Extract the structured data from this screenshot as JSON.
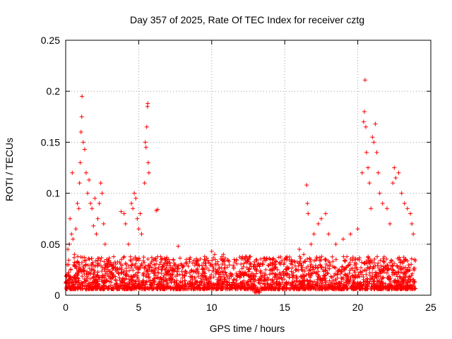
{
  "chart_data": {
    "type": "scatter",
    "title": "Day 357 of 2025, Rate Of TEC Index for receiver cztg",
    "xlabel": "GPS time / hours",
    "ylabel": "ROTI / TECUs",
    "xlim": [
      0,
      25
    ],
    "ylim": [
      0,
      0.25
    ],
    "xticks": [
      {
        "value": 0,
        "label": "0"
      },
      {
        "value": 5,
        "label": "5"
      },
      {
        "value": 10,
        "label": "10"
      },
      {
        "value": 15,
        "label": "15"
      },
      {
        "value": 20,
        "label": "20"
      },
      {
        "value": 25,
        "label": "25"
      }
    ],
    "yticks": [
      {
        "value": 0,
        "label": "0"
      },
      {
        "value": 0.05,
        "label": "0.05"
      },
      {
        "value": 0.1,
        "label": "0.1"
      },
      {
        "value": 0.15,
        "label": "0.15"
      },
      {
        "value": 0.2,
        "label": "0.2"
      },
      {
        "value": 0.25,
        "label": "0.25"
      }
    ],
    "grid": true,
    "marker": "+",
    "color": "#ff0000",
    "series": [
      {
        "name": "ROTI",
        "points": [
          [
            0.05,
            0.012
          ],
          [
            0.1,
            0.03
          ],
          [
            0.15,
            0.045
          ],
          [
            0.2,
            0.02
          ],
          [
            0.25,
            0.05
          ],
          [
            0.3,
            0.075
          ],
          [
            0.4,
            0.06
          ],
          [
            0.45,
            0.12
          ],
          [
            0.5,
            0.055
          ],
          [
            0.6,
            0.04
          ],
          [
            0.7,
            0.065
          ],
          [
            0.8,
            0.09
          ],
          [
            0.9,
            0.085
          ],
          [
            0.95,
            0.11
          ],
          [
            1.0,
            0.13
          ],
          [
            1.05,
            0.16
          ],
          [
            1.1,
            0.175
          ],
          [
            1.12,
            0.195
          ],
          [
            1.2,
            0.15
          ],
          [
            1.3,
            0.143
          ],
          [
            1.4,
            0.12
          ],
          [
            1.5,
            0.1
          ],
          [
            1.6,
            0.113
          ],
          [
            1.7,
            0.09
          ],
          [
            1.8,
            0.085
          ],
          [
            1.9,
            0.068
          ],
          [
            2.0,
            0.095
          ],
          [
            2.1,
            0.06
          ],
          [
            2.2,
            0.075
          ],
          [
            2.3,
            0.09
          ],
          [
            2.4,
            0.11
          ],
          [
            2.5,
            0.1
          ],
          [
            2.6,
            0.07
          ],
          [
            2.7,
            0.05
          ],
          [
            2.8,
            0.035
          ],
          [
            3.0,
            0.03
          ],
          [
            3.5,
            0.025
          ],
          [
            3.8,
            0.082
          ],
          [
            4.0,
            0.08
          ],
          [
            4.1,
            0.07
          ],
          [
            4.3,
            0.05
          ],
          [
            4.5,
            0.09
          ],
          [
            4.6,
            0.085
          ],
          [
            4.7,
            0.1
          ],
          [
            4.8,
            0.095
          ],
          [
            4.9,
            0.075
          ],
          [
            5.0,
            0.065
          ],
          [
            5.1,
            0.08
          ],
          [
            5.2,
            0.06
          ],
          [
            5.4,
            0.11
          ],
          [
            5.45,
            0.15
          ],
          [
            5.5,
            0.145
          ],
          [
            5.55,
            0.165
          ],
          [
            5.6,
            0.185
          ],
          [
            5.62,
            0.188
          ],
          [
            5.65,
            0.13
          ],
          [
            5.7,
            0.12
          ],
          [
            6.2,
            0.083
          ],
          [
            6.3,
            0.084
          ],
          [
            6.6,
            0.025
          ],
          [
            7.0,
            0.02
          ],
          [
            7.5,
            0.03
          ],
          [
            7.7,
            0.048
          ],
          [
            8.0,
            0.02
          ],
          [
            8.5,
            0.022
          ],
          [
            9.0,
            0.03
          ],
          [
            9.5,
            0.035
          ],
          [
            10.0,
            0.043
          ],
          [
            10.2,
            0.04
          ],
          [
            10.8,
            0.04
          ],
          [
            11.0,
            0.02
          ],
          [
            11.5,
            0.015
          ],
          [
            12.0,
            0.02
          ],
          [
            12.5,
            0.025
          ],
          [
            13.0,
            0.015
          ],
          [
            13.5,
            0.03
          ],
          [
            14.0,
            0.035
          ],
          [
            14.5,
            0.025
          ],
          [
            15.0,
            0.02
          ],
          [
            15.5,
            0.03
          ],
          [
            16.0,
            0.045
          ],
          [
            16.3,
            0.04
          ],
          [
            16.5,
            0.108
          ],
          [
            16.55,
            0.09
          ],
          [
            16.6,
            0.08
          ],
          [
            16.8,
            0.05
          ],
          [
            17.0,
            0.06
          ],
          [
            17.3,
            0.07
          ],
          [
            17.5,
            0.075
          ],
          [
            17.8,
            0.08
          ],
          [
            18.0,
            0.06
          ],
          [
            18.5,
            0.05
          ],
          [
            19.0,
            0.055
          ],
          [
            19.5,
            0.06
          ],
          [
            20.0,
            0.065
          ],
          [
            20.3,
            0.12
          ],
          [
            20.4,
            0.17
          ],
          [
            20.45,
            0.18
          ],
          [
            20.5,
            0.211
          ],
          [
            20.55,
            0.165
          ],
          [
            20.6,
            0.14
          ],
          [
            20.7,
            0.125
          ],
          [
            20.8,
            0.11
          ],
          [
            20.9,
            0.085
          ],
          [
            21.0,
            0.155
          ],
          [
            21.1,
            0.15
          ],
          [
            21.2,
            0.168
          ],
          [
            21.3,
            0.14
          ],
          [
            21.4,
            0.12
          ],
          [
            21.5,
            0.1
          ],
          [
            21.7,
            0.09
          ],
          [
            22.0,
            0.085
          ],
          [
            22.2,
            0.07
          ],
          [
            22.4,
            0.11
          ],
          [
            22.5,
            0.125
          ],
          [
            22.6,
            0.115
          ],
          [
            22.8,
            0.12
          ],
          [
            23.0,
            0.1
          ],
          [
            23.2,
            0.09
          ],
          [
            23.4,
            0.085
          ],
          [
            23.6,
            0.08
          ],
          [
            23.7,
            0.07
          ],
          [
            23.8,
            0.06
          ],
          [
            23.9,
            0.035
          ]
        ]
      }
    ]
  }
}
